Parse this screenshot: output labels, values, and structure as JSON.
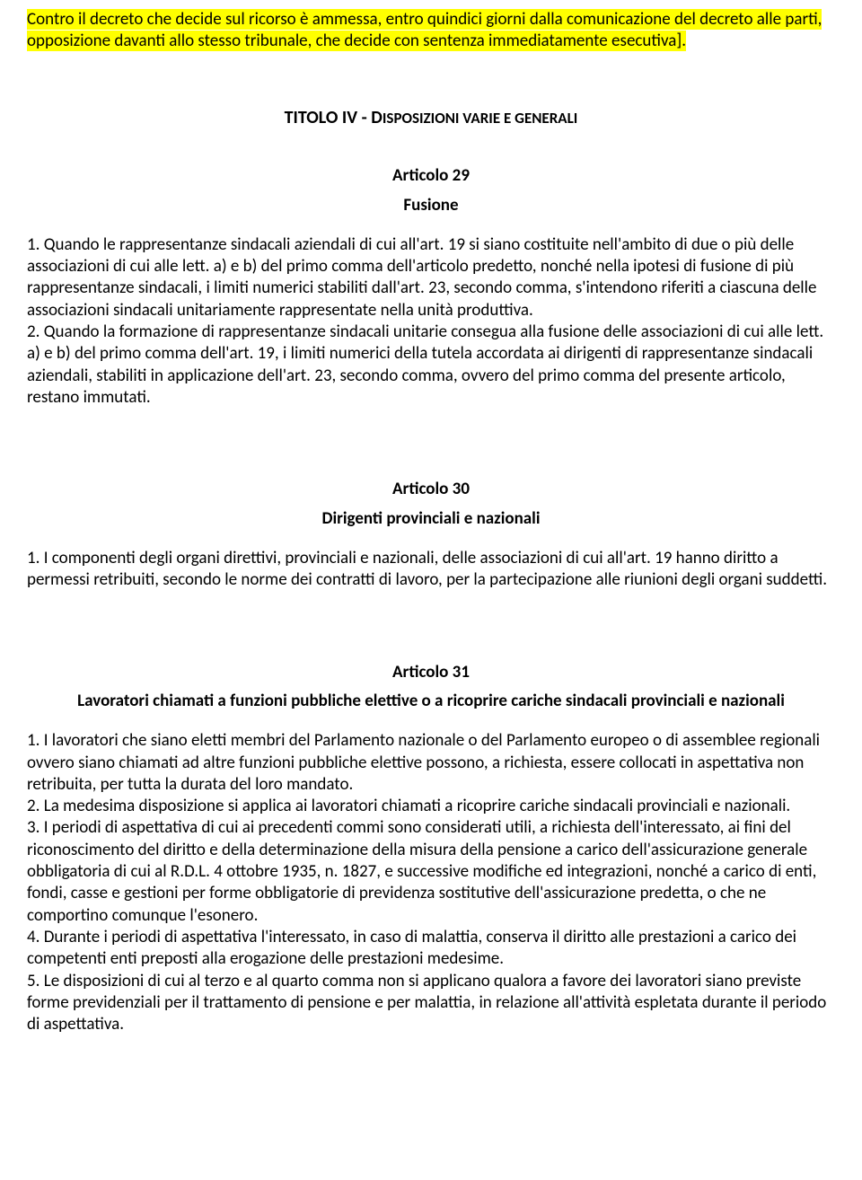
{
  "intro": {
    "highlighted": "Contro il decreto che decide sul ricorso è ammessa, entro quindici giorni dalla comunicazione del decreto alle parti, opposizione davanti allo stesso tribunale, che decide con sentenza immediatamente esecutiva]."
  },
  "titolo": {
    "prefix": "TITOLO IV - D",
    "rest": "ISPOSIZIONI VARIE E GENERALI"
  },
  "art29": {
    "num": "Articolo 29",
    "title": "Fusione",
    "p1": "1. Quando le rappresentanze sindacali aziendali di cui all'art. 19 si siano costituite nell'ambito di due o più delle associazioni di cui alle lett. a) e b) del primo comma dell'articolo predetto, nonché nella ipotesi di fusione di più rappresentanze sindacali, i limiti numerici stabiliti dall'art. 23, secondo comma, s'intendono riferiti a ciascuna delle associazioni sindacali unitariamente rappresentate nella unità produttiva.",
    "p2": "2. Quando la formazione di rappresentanze sindacali unitarie consegua alla fusione delle associazioni di cui alle lett. a) e b) del primo comma dell'art. 19, i limiti numerici della tutela accordata ai dirigenti di rappresentanze sindacali aziendali, stabiliti in applicazione dell'art. 23, secondo comma, ovvero del primo comma del presente articolo, restano immutati."
  },
  "art30": {
    "num": "Articolo 30",
    "title": "Dirigenti provinciali e nazionali",
    "p1": "1. I componenti degli organi direttivi, provinciali e nazionali, delle associazioni di cui all'art. 19 hanno diritto a permessi retribuiti, secondo le norme dei contratti di lavoro, per la partecipazione alle riunioni degli organi suddetti."
  },
  "art31": {
    "num": "Articolo 31",
    "title": "Lavoratori chiamati a funzioni pubbliche elettive o a ricoprire cariche sindacali provinciali e nazionali",
    "p1": "1. I lavoratori che siano eletti membri del Parlamento nazionale o del Parlamento europeo o di assemblee regionali ovvero siano chiamati ad altre funzioni pubbliche elettive possono, a richiesta, essere collocati in aspettativa non retribuita, per tutta la durata del loro mandato.",
    "p2": "2. La medesima disposizione si applica ai lavoratori chiamati a ricoprire cariche sindacali provinciali e nazionali.",
    "p3": "3. I periodi di aspettativa di cui ai precedenti commi sono considerati utili, a richiesta dell'interessato, ai fini del riconoscimento del diritto e della determinazione della misura della pensione a carico dell'assicurazione generale obbligatoria di cui al R.D.L. 4 ottobre 1935, n. 1827, e successive modifiche ed integrazioni, nonché a carico di enti, fondi, casse e gestioni per forme obbligatorie di previdenza sostitutive dell'assicurazione predetta, o che ne comportino comunque l'esonero.",
    "p4": "4. Durante i periodi di aspettativa l'interessato, in caso di malattia, conserva il diritto alle prestazioni a carico dei competenti enti preposti alla erogazione delle prestazioni medesime.",
    "p5": "5. Le disposizioni di cui al terzo e al quarto comma non si applicano qualora a favore dei lavoratori siano previste forme previdenziali per il trattamento di pensione e per malattia, in relazione all'attività espletata durante il periodo di aspettativa."
  }
}
